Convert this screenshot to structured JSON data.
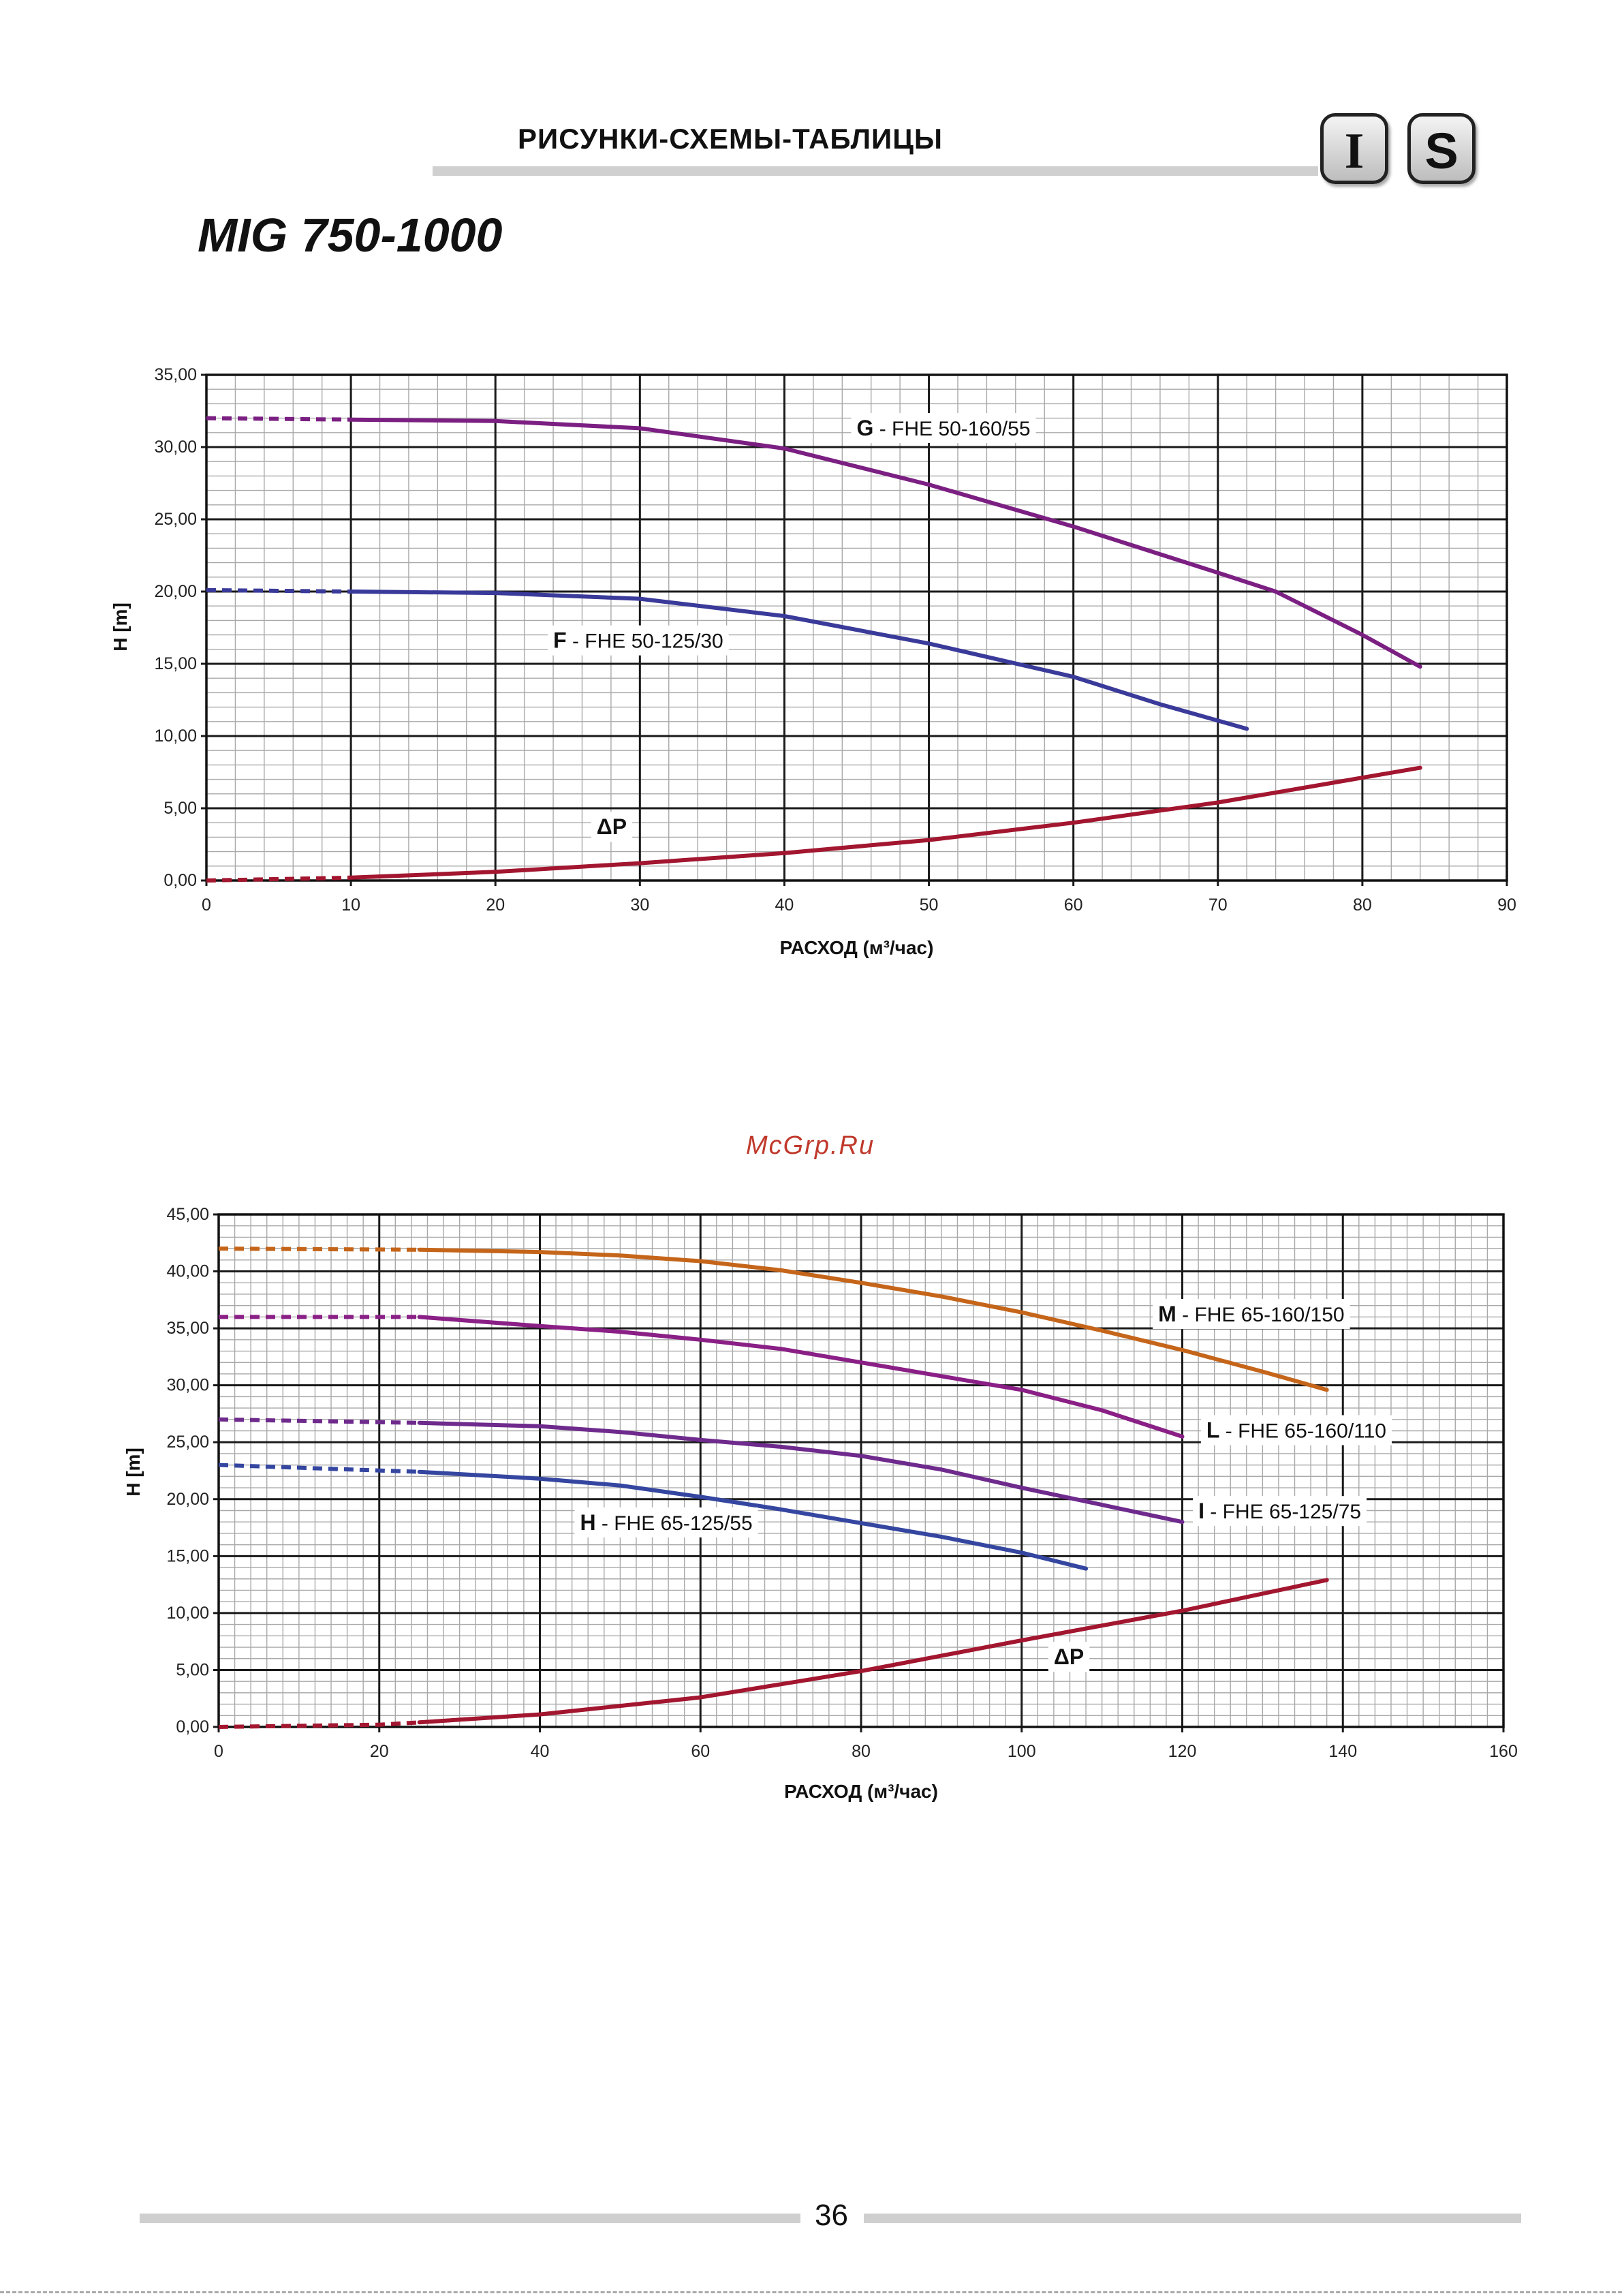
{
  "header": {
    "title": "РИСУНКИ-СХЕМЫ-ТАБЛИЦЫ",
    "badge_i": "I",
    "badge_s": "S"
  },
  "model_title": "MIG 750-1000",
  "watermark": "McGrp.Ru",
  "page_number": "36",
  "chart_data": [
    {
      "type": "line",
      "title": "",
      "xlabel": "РАСХОД (м³/час)",
      "ylabel": "H [m]",
      "xlim": [
        0,
        90
      ],
      "ylim": [
        0,
        35
      ],
      "xticks": [
        0,
        10,
        20,
        30,
        40,
        50,
        60,
        70,
        80,
        90
      ],
      "xtick_labels": [
        "0",
        "10",
        "20",
        "30",
        "40",
        "50",
        "60",
        "70",
        "80",
        "90"
      ],
      "yticks": [
        0,
        5,
        10,
        15,
        20,
        25,
        30,
        35
      ],
      "ytick_labels": [
        "0,00",
        "5,00",
        "10,00",
        "15,00",
        "20,00",
        "25,00",
        "30,00",
        "35,00"
      ],
      "grid": true,
      "series": [
        {
          "name": "G",
          "label_letter": "G",
          "label_rest": " - FHE 50-160/55",
          "color": "#7b1f82",
          "dashed_until": 10,
          "x": [
            0,
            10,
            20,
            30,
            40,
            50,
            60,
            70,
            74,
            80,
            84
          ],
          "y": [
            32.0,
            31.9,
            31.8,
            31.3,
            29.9,
            27.4,
            24.5,
            21.3,
            20.0,
            17.0,
            14.8
          ],
          "label_at": [
            45,
            30.8
          ]
        },
        {
          "name": "F",
          "label_letter": "F",
          "label_rest": " - FHE 50-125/30",
          "color": "#3a3a9a",
          "dashed_until": 10,
          "x": [
            0,
            10,
            20,
            30,
            40,
            50,
            60,
            66,
            72
          ],
          "y": [
            20.1,
            20.0,
            19.9,
            19.5,
            18.3,
            16.4,
            14.1,
            12.2,
            10.5
          ],
          "label_at": [
            24,
            16.1
          ]
        },
        {
          "name": "ΔP",
          "label_letter": "ΔP",
          "label_rest": "",
          "color": "#a3162f",
          "dashed_until": 10,
          "x": [
            0,
            10,
            20,
            30,
            40,
            50,
            60,
            70,
            84
          ],
          "y": [
            0,
            0.2,
            0.6,
            1.2,
            1.9,
            2.8,
            4.0,
            5.4,
            7.8
          ],
          "label_at": [
            27,
            3.2
          ]
        }
      ]
    },
    {
      "type": "line",
      "title": "",
      "xlabel": "РАСХОД (м³/час)",
      "ylabel": "H [m]",
      "xlim": [
        0,
        160
      ],
      "ylim": [
        0,
        45
      ],
      "xticks": [
        0,
        20,
        40,
        60,
        80,
        100,
        120,
        140,
        160
      ],
      "xtick_labels": [
        "0",
        "20",
        "40",
        "60",
        "80",
        "100",
        "120",
        "140",
        "160"
      ],
      "yticks": [
        0,
        5,
        10,
        15,
        20,
        25,
        30,
        35,
        40,
        45
      ],
      "ytick_labels": [
        "0,00",
        "5,00",
        "10,00",
        "15,00",
        "20,00",
        "25,00",
        "30,00",
        "35,00",
        "40,00",
        "45,00"
      ],
      "grid": true,
      "series": [
        {
          "name": "M",
          "label_letter": "M",
          "label_rest": " - FHE 65-160/150",
          "color": "#c5651a",
          "dashed_until": 25,
          "x": [
            0,
            25,
            40,
            50,
            60,
            70,
            80,
            90,
            100,
            110,
            120,
            130,
            138
          ],
          "y": [
            42.0,
            41.9,
            41.7,
            41.4,
            40.9,
            40.1,
            39.0,
            37.8,
            36.4,
            34.8,
            33.1,
            31.2,
            29.6
          ],
          "label_at": [
            117,
            35.6
          ]
        },
        {
          "name": "L",
          "label_letter": "L",
          "label_rest": " - FHE 65-160/110",
          "color": "#8a1f86",
          "dashed_until": 25,
          "x": [
            0,
            25,
            40,
            50,
            60,
            70,
            80,
            90,
            100,
            110,
            120
          ],
          "y": [
            36.0,
            36.0,
            35.2,
            34.7,
            34.0,
            33.2,
            32.0,
            30.8,
            29.6,
            27.8,
            25.5
          ],
          "label_at": [
            123,
            25.4
          ]
        },
        {
          "name": "I",
          "label_letter": "I",
          "label_rest": " - FHE 65-125/75",
          "color": "#6e2a8c",
          "dashed_until": 25,
          "x": [
            0,
            25,
            40,
            50,
            60,
            70,
            80,
            90,
            100,
            110,
            120
          ],
          "y": [
            27.0,
            26.7,
            26.4,
            25.9,
            25.2,
            24.6,
            23.8,
            22.6,
            21.0,
            19.5,
            18.0
          ],
          "label_at": [
            122,
            18.3
          ]
        },
        {
          "name": "H",
          "label_letter": "H",
          "label_rest": " - FHE 65-125/55",
          "color": "#3446a0",
          "dashed_until": 25,
          "x": [
            0,
            25,
            40,
            50,
            60,
            70,
            80,
            90,
            100,
            108
          ],
          "y": [
            23.0,
            22.4,
            21.8,
            21.2,
            20.2,
            19.1,
            17.9,
            16.7,
            15.3,
            13.9
          ],
          "label_at": [
            45,
            17.3
          ]
        },
        {
          "name": "ΔP",
          "label_letter": "ΔP",
          "label_rest": "",
          "color": "#a3162f",
          "dashed_until": 25,
          "x": [
            0,
            20,
            25,
            40,
            60,
            80,
            100,
            120,
            138
          ],
          "y": [
            0,
            0.2,
            0.4,
            1.1,
            2.6,
            4.9,
            7.6,
            10.2,
            12.9
          ],
          "label_at": [
            104,
            5.5
          ]
        }
      ]
    }
  ]
}
